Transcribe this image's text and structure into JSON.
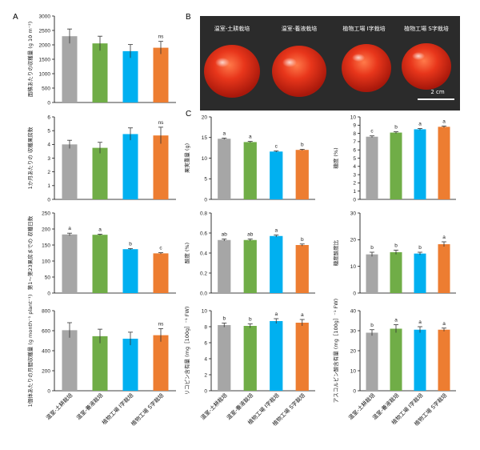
{
  "panel_labels": {
    "A": "A",
    "B": "B",
    "C": "C"
  },
  "colors": {
    "gray": "#a6a6a6",
    "green": "#70ad47",
    "blue": "#00b0f0",
    "orange": "#ed7d31"
  },
  "categories": [
    "温室-土耕栽培",
    "温室-養液栽培",
    "植物工場 I字栽培",
    "植物工場 S字栽培"
  ],
  "photo": {
    "labels": [
      "温室-土耕栽培",
      "温室-養液栽培",
      "植物工場 I字栽培",
      "植物工場 S字栽培"
    ],
    "scale_text": "2 cm"
  },
  "chart_data": [
    {
      "id": "A1",
      "type": "bar",
      "ylabel": "面積あたりの収穫量 (g 10 m⁻²)",
      "ylim": [
        0,
        3000
      ],
      "yticks": [
        "0",
        "500",
        "1000",
        "1500",
        "2000",
        "2500",
        "3000"
      ],
      "tickvals": [
        0,
        500,
        1000,
        1500,
        2000,
        2500,
        3000
      ],
      "values": [
        2300,
        2050,
        1780,
        1900
      ],
      "errors": [
        250,
        250,
        230,
        220
      ],
      "sig": [
        "",
        "",
        "",
        "ns"
      ]
    },
    {
      "id": "A2",
      "type": "bar",
      "ylabel": "1か月あたりの 収穫果房数",
      "ylim": [
        0,
        6
      ],
      "yticks": [
        "0",
        "1",
        "2",
        "3",
        "4",
        "5",
        "6"
      ],
      "tickvals": [
        0,
        1,
        2,
        3,
        4,
        5,
        6
      ],
      "values": [
        4.0,
        3.75,
        4.75,
        4.65
      ],
      "errors": [
        0.3,
        0.4,
        0.45,
        0.6
      ],
      "sig": [
        "",
        "",
        "",
        "ns"
      ]
    },
    {
      "id": "A3",
      "type": "bar",
      "ylabel": "第1～第23果房までの 収穫日数",
      "ylim": [
        0,
        250
      ],
      "yticks": [
        "0",
        "50",
        "100",
        "150",
        "200",
        "250"
      ],
      "tickvals": [
        0,
        50,
        100,
        150,
        200,
        250
      ],
      "values": [
        183,
        182,
        137,
        124
      ],
      "errors": [
        4,
        2,
        2,
        2
      ],
      "sig": [
        "a",
        "a",
        "b",
        "c"
      ]
    },
    {
      "id": "A4",
      "type": "bar",
      "ylabel": "1個体あたりの月間収穫量 (g month⁻¹ plant⁻¹)",
      "ylim": [
        0,
        800
      ],
      "yticks": [
        "0",
        "200",
        "400",
        "600",
        "800"
      ],
      "tickvals": [
        0,
        200,
        400,
        600,
        800
      ],
      "values": [
        605,
        545,
        520,
        555
      ],
      "errors": [
        75,
        70,
        65,
        65
      ],
      "sig": [
        "",
        "",
        "",
        "ns"
      ]
    },
    {
      "id": "C1",
      "type": "bar",
      "ylabel": "果実重量 (g)",
      "ylim": [
        0,
        20
      ],
      "yticks": [
        "0",
        "5",
        "10",
        "15",
        "20"
      ],
      "tickvals": [
        0,
        5,
        10,
        15,
        20
      ],
      "values": [
        14.7,
        13.9,
        11.6,
        12.0
      ],
      "errors": [
        0.15,
        0.15,
        0.15,
        0.15
      ],
      "sig": [
        "a",
        "a",
        "c",
        "b"
      ]
    },
    {
      "id": "C2",
      "type": "bar",
      "ylabel": "糖度 (%)",
      "ylim": [
        0,
        10
      ],
      "yticks": [
        "0",
        "1",
        "2",
        "3",
        "4",
        "5",
        "6",
        "7",
        "8",
        "9",
        "10"
      ],
      "tickvals": [
        0,
        1,
        2,
        3,
        4,
        5,
        6,
        7,
        8,
        9,
        10
      ],
      "values": [
        7.6,
        8.1,
        8.5,
        8.8
      ],
      "errors": [
        0.1,
        0.1,
        0.1,
        0.1
      ],
      "sig": [
        "c",
        "b",
        "a",
        "a"
      ]
    },
    {
      "id": "C3",
      "type": "bar",
      "ylabel": "酸度 (%)",
      "ylim": [
        0,
        0.8
      ],
      "yticks": [
        "0.0",
        "0.2",
        "0.4",
        "0.6",
        "0.8"
      ],
      "tickvals": [
        0,
        0.2,
        0.4,
        0.6,
        0.8
      ],
      "values": [
        0.53,
        0.53,
        0.57,
        0.48
      ],
      "errors": [
        0.01,
        0.01,
        0.01,
        0.01
      ],
      "sig": [
        "ab",
        "ab",
        "a",
        "b"
      ]
    },
    {
      "id": "C4",
      "type": "bar",
      "ylabel": "糖度酸度比",
      "ylim": [
        0,
        30
      ],
      "yticks": [
        "0",
        "10",
        "20",
        "30"
      ],
      "tickvals": [
        0,
        10,
        20,
        30
      ],
      "values": [
        14.5,
        15.3,
        14.8,
        18.3
      ],
      "errors": [
        0.8,
        0.8,
        0.5,
        0.9
      ],
      "sig": [
        "b",
        "b",
        "b",
        "a"
      ]
    },
    {
      "id": "C5",
      "type": "bar",
      "ylabel": "リコピン含有量 (mg［100g］⁻¹ FW)",
      "ylim": [
        0,
        10
      ],
      "yticks": [
        "0",
        "2",
        "4",
        "6",
        "8",
        "10"
      ],
      "tickvals": [
        0,
        2,
        4,
        6,
        8,
        10
      ],
      "values": [
        8.2,
        8.1,
        8.7,
        8.5
      ],
      "errors": [
        0.25,
        0.25,
        0.3,
        0.4
      ],
      "sig": [
        "b",
        "b",
        "a",
        "a"
      ]
    },
    {
      "id": "C6",
      "type": "bar",
      "ylabel": "アスコルビン酸含有量 (mg［100g］⁻¹ FW)",
      "ylim": [
        0,
        40
      ],
      "yticks": [
        "0",
        "10",
        "20",
        "30",
        "40"
      ],
      "tickvals": [
        0,
        10,
        20,
        30,
        40
      ],
      "values": [
        29.0,
        31.0,
        30.5,
        30.5
      ],
      "errors": [
        1.5,
        2.0,
        1.5,
        0.8
      ],
      "sig": [
        "b",
        "a",
        "a",
        "a"
      ]
    }
  ]
}
